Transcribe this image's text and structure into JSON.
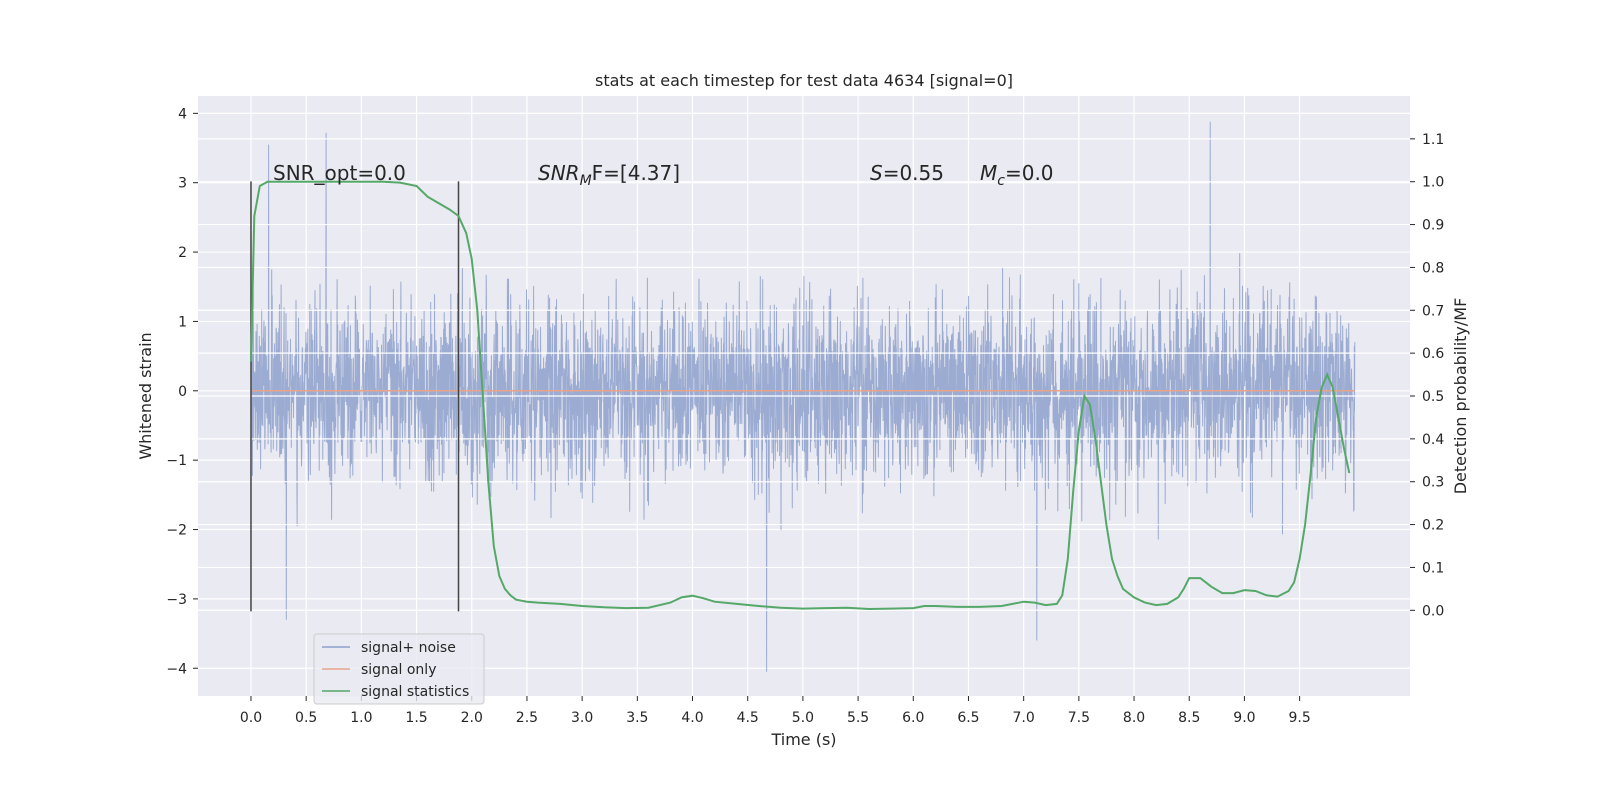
{
  "chart_data": {
    "type": "line",
    "title": "stats at each timestep for test data 4634 [signal=0]",
    "xlabel": "Time (s)",
    "ylabel": "Whitened strain",
    "ylabel_right": "Detection probability/MF",
    "xlim": [
      -0.48,
      10.5
    ],
    "ylim": [
      -4.4,
      4.25
    ],
    "ylim_right": [
      -0.2,
      1.2
    ],
    "x_ticks": [
      "0.0",
      "0.5",
      "1.0",
      "1.5",
      "2.0",
      "2.5",
      "3.0",
      "3.5",
      "4.0",
      "4.5",
      "5.0",
      "5.5",
      "6.0",
      "6.5",
      "7.0",
      "7.5",
      "8.0",
      "8.5",
      "9.0",
      "9.5"
    ],
    "y_ticks": [
      "4",
      "3",
      "2",
      "1",
      "0",
      "−1",
      "−2",
      "−3",
      "−4"
    ],
    "y_ticks_right": [
      "1.1",
      "1.0",
      "0.9",
      "0.8",
      "0.7",
      "0.6",
      "0.5",
      "0.4",
      "0.3",
      "0.2",
      "0.1",
      "0.0"
    ],
    "grid": true,
    "legend_position": "lower-left",
    "annotations": {
      "snr_opt": "SNR_opt=0.0",
      "snr_mf_prefix": "SNR",
      "snr_mf_sub": "M",
      "snr_mf_suffix": "F=[4.37]",
      "s_italic": "S",
      "s_value": "=0.55",
      "mc_italic": "M",
      "mc_sub": "c",
      "mc_value": "=0.0"
    },
    "vlines_x": [
      0.0,
      1.88
    ],
    "series": [
      {
        "name": "signal+ noise",
        "color": "#8da0cb",
        "x_range": [
          0.0,
          10.0
        ],
        "approx_envelope": [
          -2.5,
          2.5
        ],
        "notable_peaks": [
          [
            0.16,
            3.55
          ],
          [
            0.68,
            3.72
          ],
          [
            8.69,
            3.88
          ],
          [
            4.67,
            -4.05
          ],
          [
            7.12,
            -3.6
          ],
          [
            0.32,
            -3.3
          ]
        ]
      },
      {
        "name": "signal only",
        "color": "#e8a48a",
        "x": [
          0.0,
          10.0
        ],
        "values": [
          0.0,
          0.0
        ]
      },
      {
        "name": "signal statistics",
        "color": "#55a868",
        "axis": "right",
        "x": [
          0.0,
          0.03,
          0.08,
          0.15,
          0.25,
          0.4,
          0.6,
          0.8,
          1.0,
          1.2,
          1.35,
          1.5,
          1.6,
          1.7,
          1.8,
          1.88,
          1.95,
          2.0,
          2.05,
          2.1,
          2.15,
          2.2,
          2.25,
          2.3,
          2.35,
          2.4,
          2.5,
          2.6,
          2.8,
          3.0,
          3.2,
          3.4,
          3.6,
          3.8,
          3.9,
          4.0,
          4.1,
          4.2,
          4.4,
          4.6,
          4.8,
          5.0,
          5.2,
          5.4,
          5.6,
          5.8,
          6.0,
          6.1,
          6.2,
          6.4,
          6.6,
          6.8,
          6.9,
          7.0,
          7.1,
          7.2,
          7.3,
          7.35,
          7.4,
          7.45,
          7.5,
          7.55,
          7.6,
          7.65,
          7.7,
          7.75,
          7.8,
          7.85,
          7.9,
          8.0,
          8.1,
          8.2,
          8.3,
          8.4,
          8.45,
          8.5,
          8.6,
          8.7,
          8.8,
          8.9,
          9.0,
          9.1,
          9.2,
          9.3,
          9.4,
          9.45,
          9.5,
          9.55,
          9.6,
          9.65,
          9.7,
          9.75,
          9.8,
          9.85,
          9.9,
          9.95
        ],
        "values": [
          0.58,
          0.92,
          0.99,
          1.0,
          1.0,
          1.0,
          1.0,
          1.0,
          1.0,
          1.0,
          0.998,
          0.99,
          0.965,
          0.95,
          0.935,
          0.92,
          0.88,
          0.82,
          0.7,
          0.5,
          0.3,
          0.15,
          0.08,
          0.05,
          0.035,
          0.025,
          0.02,
          0.018,
          0.015,
          0.01,
          0.007,
          0.005,
          0.006,
          0.018,
          0.03,
          0.034,
          0.028,
          0.02,
          0.015,
          0.01,
          0.006,
          0.004,
          0.005,
          0.006,
          0.003,
          0.004,
          0.005,
          0.01,
          0.01,
          0.008,
          0.008,
          0.01,
          0.015,
          0.02,
          0.018,
          0.012,
          0.015,
          0.035,
          0.12,
          0.28,
          0.42,
          0.5,
          0.48,
          0.4,
          0.3,
          0.2,
          0.12,
          0.08,
          0.05,
          0.03,
          0.018,
          0.012,
          0.015,
          0.03,
          0.05,
          0.075,
          0.075,
          0.055,
          0.04,
          0.04,
          0.047,
          0.045,
          0.035,
          0.032,
          0.045,
          0.065,
          0.12,
          0.2,
          0.32,
          0.45,
          0.52,
          0.55,
          0.52,
          0.45,
          0.38,
          0.32
        ]
      }
    ]
  }
}
